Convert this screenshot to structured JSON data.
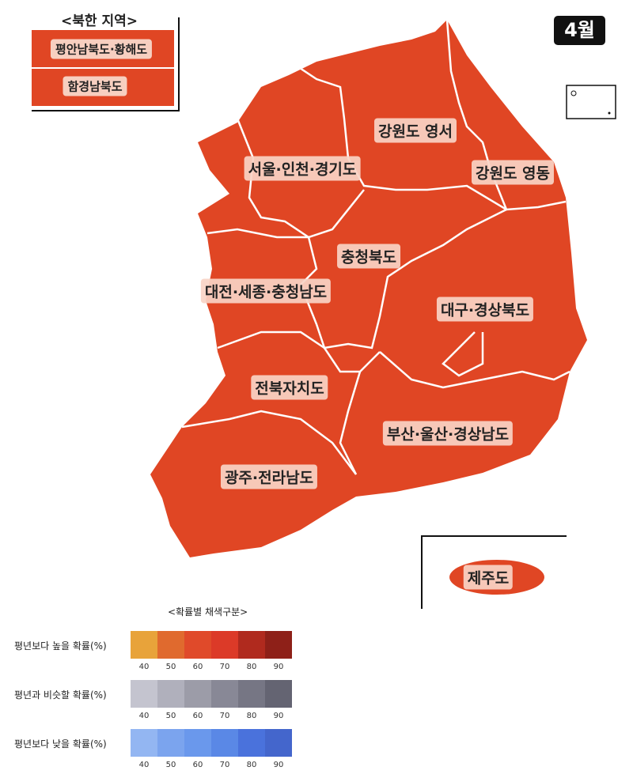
{
  "north_korea": {
    "title": "<북한 지역>",
    "regions": [
      "평안남북도·황해도",
      "함경남북도"
    ]
  },
  "month": "4월",
  "regions": [
    "강원도 영서",
    "서울·인천·경기도",
    "강원도 영동",
    "충청북도",
    "대전·세종·충청남도",
    "대구·경상북도",
    "전북자치도",
    "부산·울산·경상남도",
    "광주·전라남도",
    "제주도"
  ],
  "legend": {
    "title": "<확률별 채색구분>",
    "rows": [
      {
        "label": "평년보다 높을 확률(%)",
        "ticks": [
          40,
          50,
          60,
          70,
          80,
          90
        ],
        "colors": [
          "#e8a33a",
          "#e06a2e",
          "#e04a2a",
          "#dc3a28",
          "#b02a1e",
          "#8e2018"
        ]
      },
      {
        "label": "평년과 비슷할 확률(%)",
        "ticks": [
          40,
          50,
          60,
          70,
          80,
          90
        ],
        "colors": [
          "#c4c4cf",
          "#b0b0bc",
          "#9c9ca8",
          "#888896",
          "#767684",
          "#646472"
        ]
      },
      {
        "label": "평년보다 낮을 확률(%)",
        "ticks": [
          40,
          50,
          60,
          70,
          80,
          90
        ],
        "colors": [
          "#93b6f2",
          "#7ba4ee",
          "#6a98ec",
          "#5a88e6",
          "#4a72dc",
          "#4466cc"
        ]
      }
    ]
  }
}
